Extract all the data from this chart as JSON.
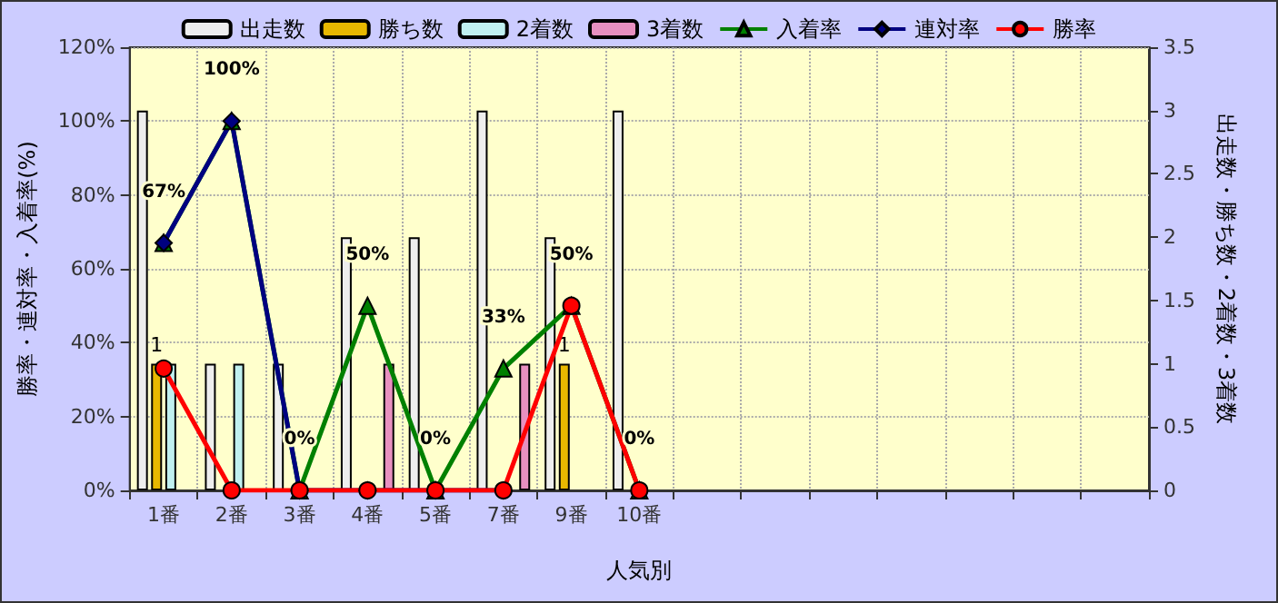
{
  "chart_data": {
    "type": "bar",
    "xlabel": "人気別",
    "ylabel": "勝率・連対率・入着率(%)",
    "y2label": "出走数・勝ち数・2着数・3着数",
    "categories": [
      "1番",
      "2番",
      "3番",
      "4番",
      "5番",
      "7番",
      "9番",
      "10番",
      null,
      null,
      null,
      null,
      null,
      null,
      null
    ],
    "series": [
      {
        "name": "出走数",
        "axis": "y2",
        "color": "#eeeeee",
        "values": [
          3,
          1,
          1,
          2,
          2,
          3,
          2,
          3,
          null,
          null,
          null,
          null,
          null,
          null,
          null
        ]
      },
      {
        "name": "勝ち数",
        "axis": "y2",
        "color": "#e8b800",
        "values": [
          1,
          null,
          null,
          null,
          null,
          null,
          1,
          null,
          null,
          null,
          null,
          null,
          null,
          null,
          null
        ],
        "value_labels": [
          "1",
          null,
          null,
          null,
          null,
          null,
          "1",
          null,
          null,
          null,
          null,
          null,
          null,
          null,
          null
        ]
      },
      {
        "name": "2着数",
        "axis": "y2",
        "color": "#c0f0f0",
        "values": [
          1,
          1,
          null,
          null,
          null,
          null,
          null,
          null,
          null,
          null,
          null,
          null,
          null,
          null,
          null
        ]
      },
      {
        "name": "3着数",
        "axis": "y2",
        "color": "#e890c0",
        "values": [
          null,
          null,
          null,
          1,
          null,
          1,
          null,
          null,
          null,
          null,
          null,
          null,
          null,
          null,
          null
        ]
      },
      {
        "name": "入着率",
        "type": "line",
        "marker": "triangle",
        "color": "#008000",
        "values": [
          67,
          100,
          0,
          50,
          0,
          33,
          50,
          0,
          null,
          null,
          null,
          null,
          null,
          null,
          null
        ],
        "value_labels": [
          "67%",
          "100%",
          "0%",
          "50%",
          "0%",
          "33%",
          "50%",
          "0%",
          null,
          null,
          null,
          null,
          null,
          null,
          null
        ]
      },
      {
        "name": "連対率",
        "type": "line",
        "marker": "diamond",
        "color": "#000080",
        "values": [
          67,
          100,
          0,
          0,
          0,
          0,
          null,
          null,
          null,
          null,
          null,
          null,
          null,
          null,
          null
        ]
      },
      {
        "name": "勝率",
        "type": "line",
        "marker": "circle",
        "color": "#ff0000",
        "values": [
          33,
          0,
          0,
          0,
          0,
          0,
          50,
          0,
          null,
          null,
          null,
          null,
          null,
          null,
          null
        ]
      }
    ],
    "ylim": [
      0,
      120
    ],
    "yticks": [
      {
        "value": 0,
        "label": "0%"
      },
      {
        "value": 20,
        "label": "20%"
      },
      {
        "value": 40,
        "label": "40%"
      },
      {
        "value": 60,
        "label": "60%"
      },
      {
        "value": 80,
        "label": "80%"
      },
      {
        "value": 100,
        "label": "100%"
      },
      {
        "value": 120,
        "label": "120%"
      }
    ],
    "y2lim": [
      0,
      3.5
    ],
    "y2ticks": [
      0,
      0.5,
      1,
      1.5,
      2,
      2.5,
      3,
      3.5
    ],
    "grid": true,
    "legend": "top",
    "line_style": "solid"
  }
}
